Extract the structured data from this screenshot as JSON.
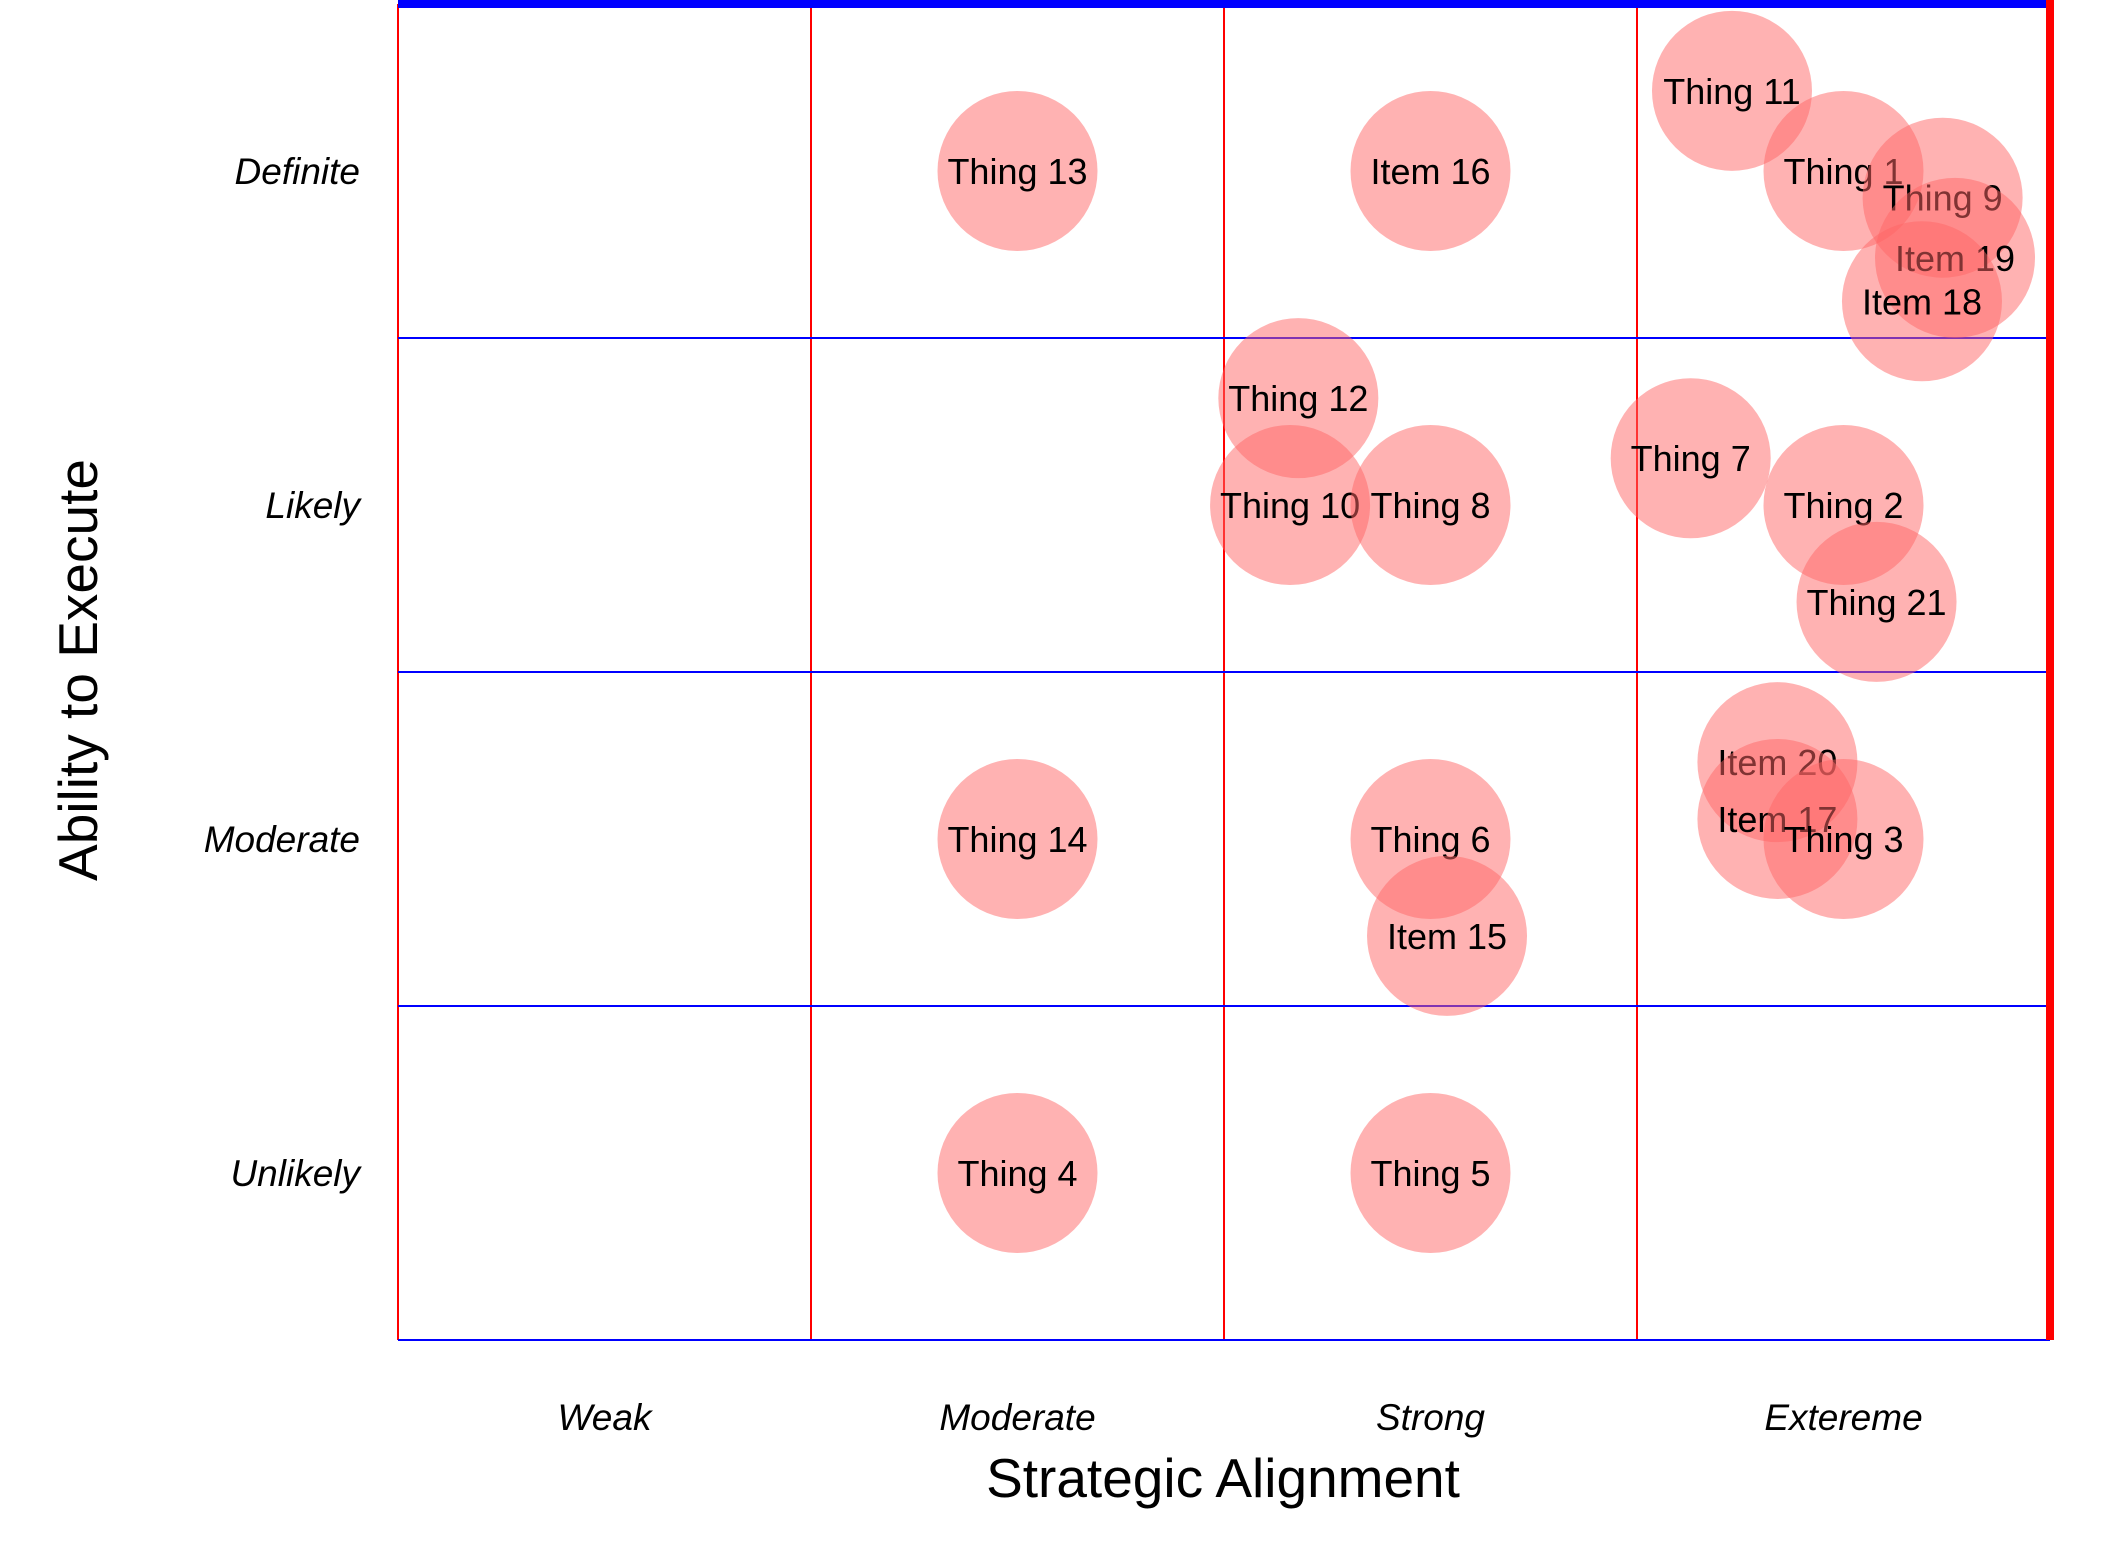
{
  "chart_data": {
    "type": "scatter",
    "title": "",
    "xlabel": "Strategic Alignment",
    "ylabel": "Ability to Execute",
    "x_categories": [
      "Weak",
      "Moderate",
      "Strong",
      "Extereme"
    ],
    "y_categories": [
      "Unlikely",
      "Moderate",
      "Likely",
      "Definite"
    ],
    "xlim": [
      0,
      4
    ],
    "ylim": [
      0,
      4
    ],
    "grid": true,
    "colors": {
      "bubble_fill": "#ff6666",
      "vertical_grid": "#ff0000",
      "horizontal_grid": "#0000ff",
      "top_border": "#0000ff",
      "right_border": "#ff0000"
    },
    "points": [
      {
        "label": "Thing 13",
        "x": 1.5,
        "y": 3.5
      },
      {
        "label": "Item 16",
        "x": 2.5,
        "y": 3.5
      },
      {
        "label": "Thing 11",
        "x": 3.23,
        "y": 3.74
      },
      {
        "label": "Thing 1",
        "x": 3.5,
        "y": 3.5
      },
      {
        "label": "Thing 9",
        "x": 3.74,
        "y": 3.42
      },
      {
        "label": "Item 19",
        "x": 3.77,
        "y": 3.24
      },
      {
        "label": "Item 18",
        "x": 3.69,
        "y": 3.11
      },
      {
        "label": "Thing 12",
        "x": 2.18,
        "y": 2.82
      },
      {
        "label": "Thing 10",
        "x": 2.16,
        "y": 2.5
      },
      {
        "label": "Thing 8",
        "x": 2.5,
        "y": 2.5
      },
      {
        "label": "Thing 7",
        "x": 3.13,
        "y": 2.64
      },
      {
        "label": "Thing 2",
        "x": 3.5,
        "y": 2.5
      },
      {
        "label": "Thing 21",
        "x": 3.58,
        "y": 2.21
      },
      {
        "label": "Item 20",
        "x": 3.34,
        "y": 1.73
      },
      {
        "label": "Item 17",
        "x": 3.34,
        "y": 1.56
      },
      {
        "label": "Thing 3",
        "x": 3.5,
        "y": 1.5
      },
      {
        "label": "Thing 14",
        "x": 1.5,
        "y": 1.5
      },
      {
        "label": "Thing 6",
        "x": 2.5,
        "y": 1.5
      },
      {
        "label": "Item 15",
        "x": 2.54,
        "y": 1.21
      },
      {
        "label": "Thing 4",
        "x": 1.5,
        "y": 0.5
      },
      {
        "label": "Thing 5",
        "x": 2.5,
        "y": 0.5
      }
    ]
  }
}
